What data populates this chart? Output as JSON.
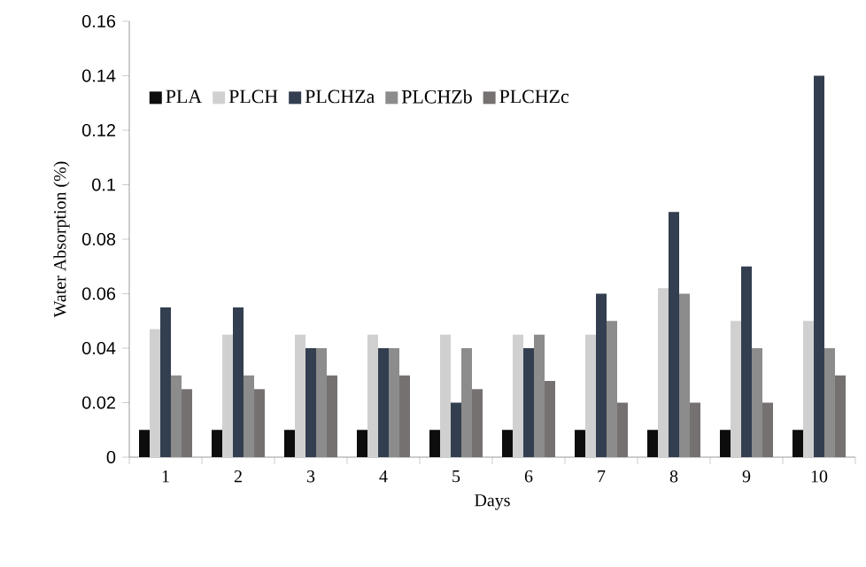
{
  "chart_data": {
    "type": "bar",
    "xlabel": "Days",
    "ylabel": "Water Absorption (%)",
    "categories": [
      "1",
      "2",
      "3",
      "4",
      "5",
      "6",
      "7",
      "8",
      "9",
      "10"
    ],
    "series": [
      {
        "name": "PLA",
        "color": "#0d0d0d",
        "values": [
          0.01,
          0.01,
          0.01,
          0.01,
          0.01,
          0.01,
          0.01,
          0.01,
          0.01,
          0.01
        ]
      },
      {
        "name": "PLCH",
        "color": "#d0d0d0",
        "values": [
          0.047,
          0.045,
          0.045,
          0.045,
          0.045,
          0.045,
          0.045,
          0.062,
          0.05,
          0.05
        ]
      },
      {
        "name": "PLCHZa",
        "color": "#333f50",
        "values": [
          0.055,
          0.055,
          0.04,
          0.04,
          0.02,
          0.04,
          0.06,
          0.09,
          0.07,
          0.14
        ]
      },
      {
        "name": "PLCHZb",
        "color": "#8c8c8c",
        "values": [
          0.03,
          0.03,
          0.04,
          0.04,
          0.04,
          0.045,
          0.05,
          0.06,
          0.04,
          0.04
        ]
      },
      {
        "name": "PLCHZc",
        "color": "#767171",
        "values": [
          0.025,
          0.025,
          0.03,
          0.03,
          0.025,
          0.028,
          0.02,
          0.02,
          0.02,
          0.03
        ]
      }
    ],
    "ylim": [
      0,
      0.16
    ],
    "yticks": [
      0,
      0.02,
      0.04,
      0.06,
      0.08,
      0.1,
      0.12,
      0.14,
      0.16
    ],
    "legend": "top left",
    "grid": false
  }
}
